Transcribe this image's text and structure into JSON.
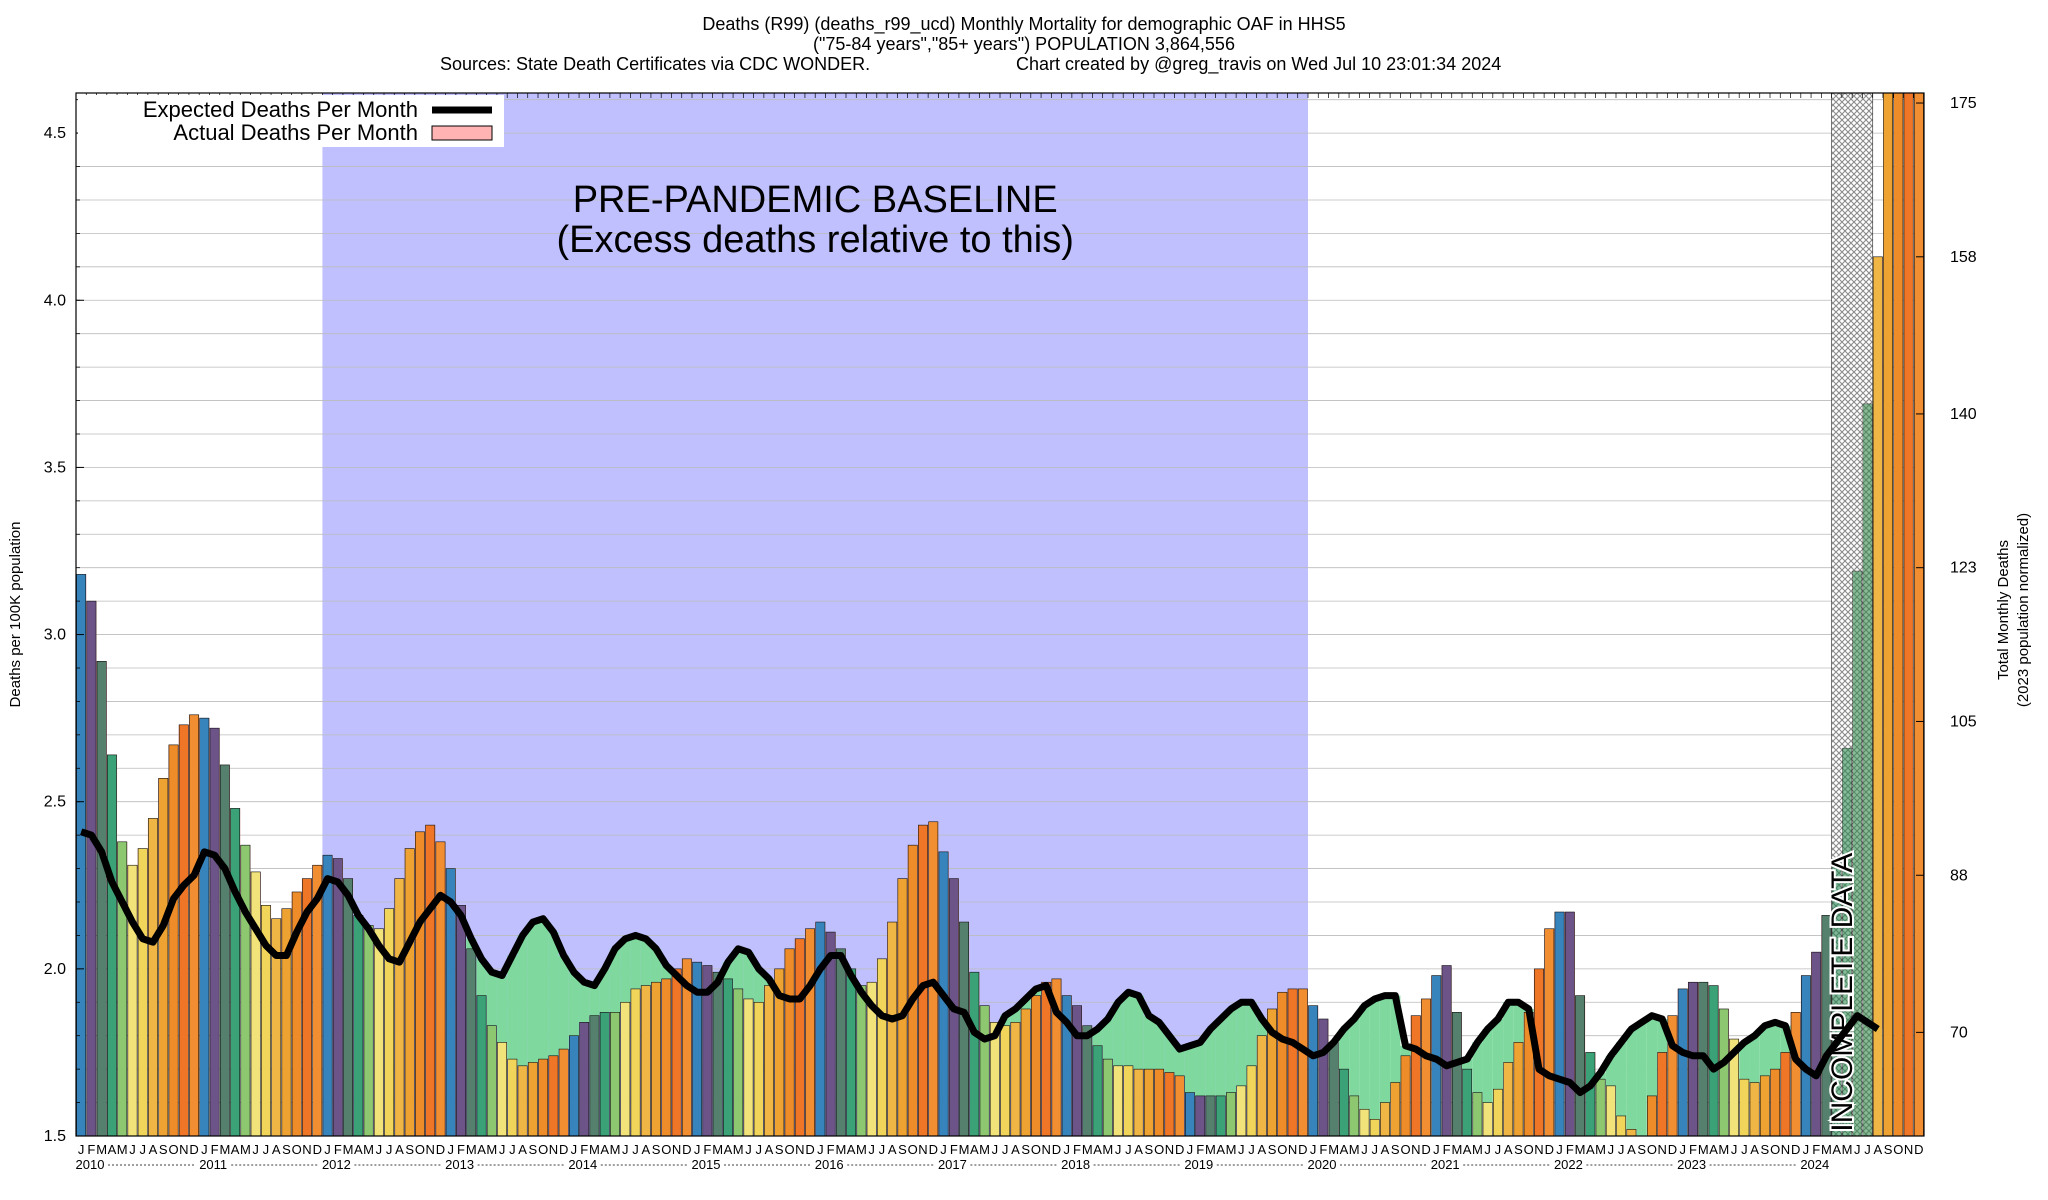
{
  "header": {
    "title": "Deaths (R99) (deaths_r99_ucd) Monthly Mortality for demographic OAF in HHS5",
    "subtitle": "(\"75-84 years\",\"85+ years\") POPULATION 3,864,556",
    "sources": "Sources: State Death Certificates via CDC WONDER.",
    "credit": "Chart created by @greg_travis on Wed Jul 10 23:01:34 2024"
  },
  "colors": {
    "baseline_band": "#c0c0ff",
    "expected_line": "#000000",
    "actual_fill": "#ffb3b3",
    "excess_green": "#7fd99f",
    "incomplete_hatch": "#888888"
  },
  "chart_data": {
    "type": "bar",
    "title": "Deaths (R99) (deaths_r99_ucd) Monthly Mortality for demographic OAF in HHS5",
    "ylabel_left": "Deaths per 100K population",
    "ylabel_right_line1": "Total Monthly Deaths",
    "ylabel_right_line2": "(2023 population normalized)",
    "ylim": [
      1.5,
      4.62
    ],
    "yticks_left": [
      1.5,
      2.0,
      2.5,
      3.0,
      3.5,
      4.0,
      4.5
    ],
    "ytick_labels_left": [
      "1.5",
      "2.0",
      "2.5",
      "3.0",
      "3.5",
      "4.0",
      "4.5"
    ],
    "yticks_right_values": [
      1.81,
      2.28,
      2.74,
      3.2,
      3.66,
      4.13,
      4.59
    ],
    "ytick_labels_right": [
      "70",
      "88",
      "105",
      "123",
      "140",
      "158",
      "175"
    ],
    "x_start": "2010-01",
    "x_end": "2024-07",
    "month_letters": [
      "J",
      "F",
      "M",
      "A",
      "M",
      "J",
      "J",
      "A",
      "S",
      "O",
      "N",
      "D"
    ],
    "year_labels": [
      "2010",
      "2011",
      "2012",
      "2013",
      "2014",
      "2015",
      "2016",
      "2017",
      "2018",
      "2019",
      "2020",
      "2021",
      "2022",
      "2023",
      "2024"
    ],
    "legend": {
      "position": "top-left",
      "expected": "Expected Deaths Per Month",
      "actual": "Actual Deaths Per Month"
    },
    "baseline_band": {
      "start": "2012-01",
      "end": "2019-12",
      "label_line1": "PRE-PANDEMIC BASELINE",
      "label_line2": "(Excess deaths relative to this)"
    },
    "incomplete": {
      "start": "2024-04",
      "end": "2024-07",
      "label": "INCOMPLETE DATA"
    },
    "series": [
      {
        "name": "Actual Deaths Per Month",
        "values": [
          3.18,
          3.1,
          2.92,
          2.64,
          2.38,
          2.31,
          2.36,
          2.45,
          2.57,
          2.67,
          2.73,
          2.76,
          2.75,
          2.72,
          2.61,
          2.48,
          2.37,
          2.29,
          2.19,
          2.15,
          2.18,
          2.23,
          2.27,
          2.31,
          2.34,
          2.33,
          2.27,
          2.16,
          2.13,
          2.12,
          2.18,
          2.27,
          2.36,
          2.41,
          2.43,
          2.38,
          2.3,
          2.19,
          2.06,
          1.92,
          1.83,
          1.78,
          1.73,
          1.71,
          1.72,
          1.73,
          1.74,
          1.76,
          1.8,
          1.84,
          1.86,
          1.87,
          1.87,
          1.9,
          1.94,
          1.95,
          1.96,
          1.97,
          2.0,
          2.03,
          2.02,
          2.01,
          1.99,
          1.97,
          1.94,
          1.91,
          1.9,
          1.95,
          2.0,
          2.06,
          2.09,
          2.12,
          2.14,
          2.11,
          2.06,
          2.0,
          1.95,
          1.96,
          2.03,
          2.14,
          2.27,
          2.37,
          2.43,
          2.44,
          2.35,
          2.27,
          2.14,
          1.99,
          1.89,
          1.84,
          1.83,
          1.84,
          1.88,
          1.92,
          1.96,
          1.97,
          1.92,
          1.89,
          1.83,
          1.77,
          1.73,
          1.71,
          1.71,
          1.7,
          1.7,
          1.7,
          1.69,
          1.68,
          1.63,
          1.62,
          1.62,
          1.62,
          1.63,
          1.65,
          1.71,
          1.8,
          1.88,
          1.93,
          1.94,
          1.94,
          1.89,
          1.85,
          1.78,
          1.7,
          1.62,
          1.58,
          1.55,
          1.6,
          1.66,
          1.74,
          1.86,
          1.91,
          1.98,
          2.01,
          1.87,
          1.7,
          1.63,
          1.6,
          1.64,
          1.72,
          1.78,
          1.87,
          2.0,
          2.12,
          2.17,
          2.17,
          1.92,
          1.75,
          1.67,
          1.65,
          1.56,
          1.52,
          1.5,
          1.62,
          1.75,
          1.86,
          1.94,
          1.96,
          1.96,
          1.95,
          1.88,
          1.79,
          1.67,
          1.66,
          1.68,
          1.7,
          1.75,
          1.87,
          1.98,
          2.05,
          2.16,
          2.33,
          2.66,
          3.19,
          3.69,
          4.13,
          4.62,
          4.62,
          4.62,
          4.62
        ]
      },
      {
        "name": "Expected Deaths Per Month",
        "values": [
          2.41,
          2.4,
          2.35,
          2.26,
          2.2,
          2.14,
          2.09,
          2.08,
          2.13,
          2.21,
          2.25,
          2.28,
          2.35,
          2.34,
          2.3,
          2.23,
          2.17,
          2.12,
          2.07,
          2.04,
          2.04,
          2.11,
          2.17,
          2.21,
          2.27,
          2.26,
          2.22,
          2.16,
          2.12,
          2.07,
          2.03,
          2.02,
          2.08,
          2.14,
          2.18,
          2.22,
          2.2,
          2.16,
          2.09,
          2.03,
          1.99,
          1.98,
          2.04,
          2.1,
          2.14,
          2.15,
          2.11,
          2.04,
          1.99,
          1.96,
          1.95,
          2.0,
          2.06,
          2.09,
          2.1,
          2.09,
          2.06,
          2.01,
          1.98,
          1.95,
          1.93,
          1.93,
          1.96,
          2.02,
          2.06,
          2.05,
          2.0,
          1.97,
          1.92,
          1.91,
          1.91,
          1.95,
          2.0,
          2.04,
          2.04,
          1.98,
          1.93,
          1.89,
          1.86,
          1.85,
          1.86,
          1.91,
          1.95,
          1.96,
          1.92,
          1.88,
          1.87,
          1.81,
          1.79,
          1.8,
          1.86,
          1.88,
          1.91,
          1.94,
          1.95,
          1.87,
          1.84,
          1.8,
          1.8,
          1.82,
          1.85,
          1.9,
          1.93,
          1.92,
          1.86,
          1.84,
          1.8,
          1.76,
          1.77,
          1.78,
          1.82,
          1.85,
          1.88,
          1.9,
          1.9,
          1.85,
          1.81,
          1.79,
          1.78,
          1.76,
          1.74,
          1.75,
          1.78,
          1.82,
          1.85,
          1.89,
          1.91,
          1.92,
          1.92,
          1.77,
          1.76,
          1.74,
          1.73,
          1.71,
          1.72,
          1.73,
          1.78,
          1.82,
          1.85,
          1.9,
          1.9,
          1.88,
          1.7,
          1.68,
          1.67,
          1.66,
          1.63,
          1.65,
          1.69,
          1.74,
          1.78,
          1.82,
          1.84,
          1.86,
          1.85,
          1.77,
          1.75,
          1.74,
          1.74,
          1.7,
          1.72,
          1.75,
          1.78,
          1.8,
          1.83,
          1.84,
          1.83,
          1.73,
          1.7,
          1.68,
          1.74,
          1.78,
          1.82,
          1.86,
          1.84,
          1.82
        ]
      }
    ]
  }
}
